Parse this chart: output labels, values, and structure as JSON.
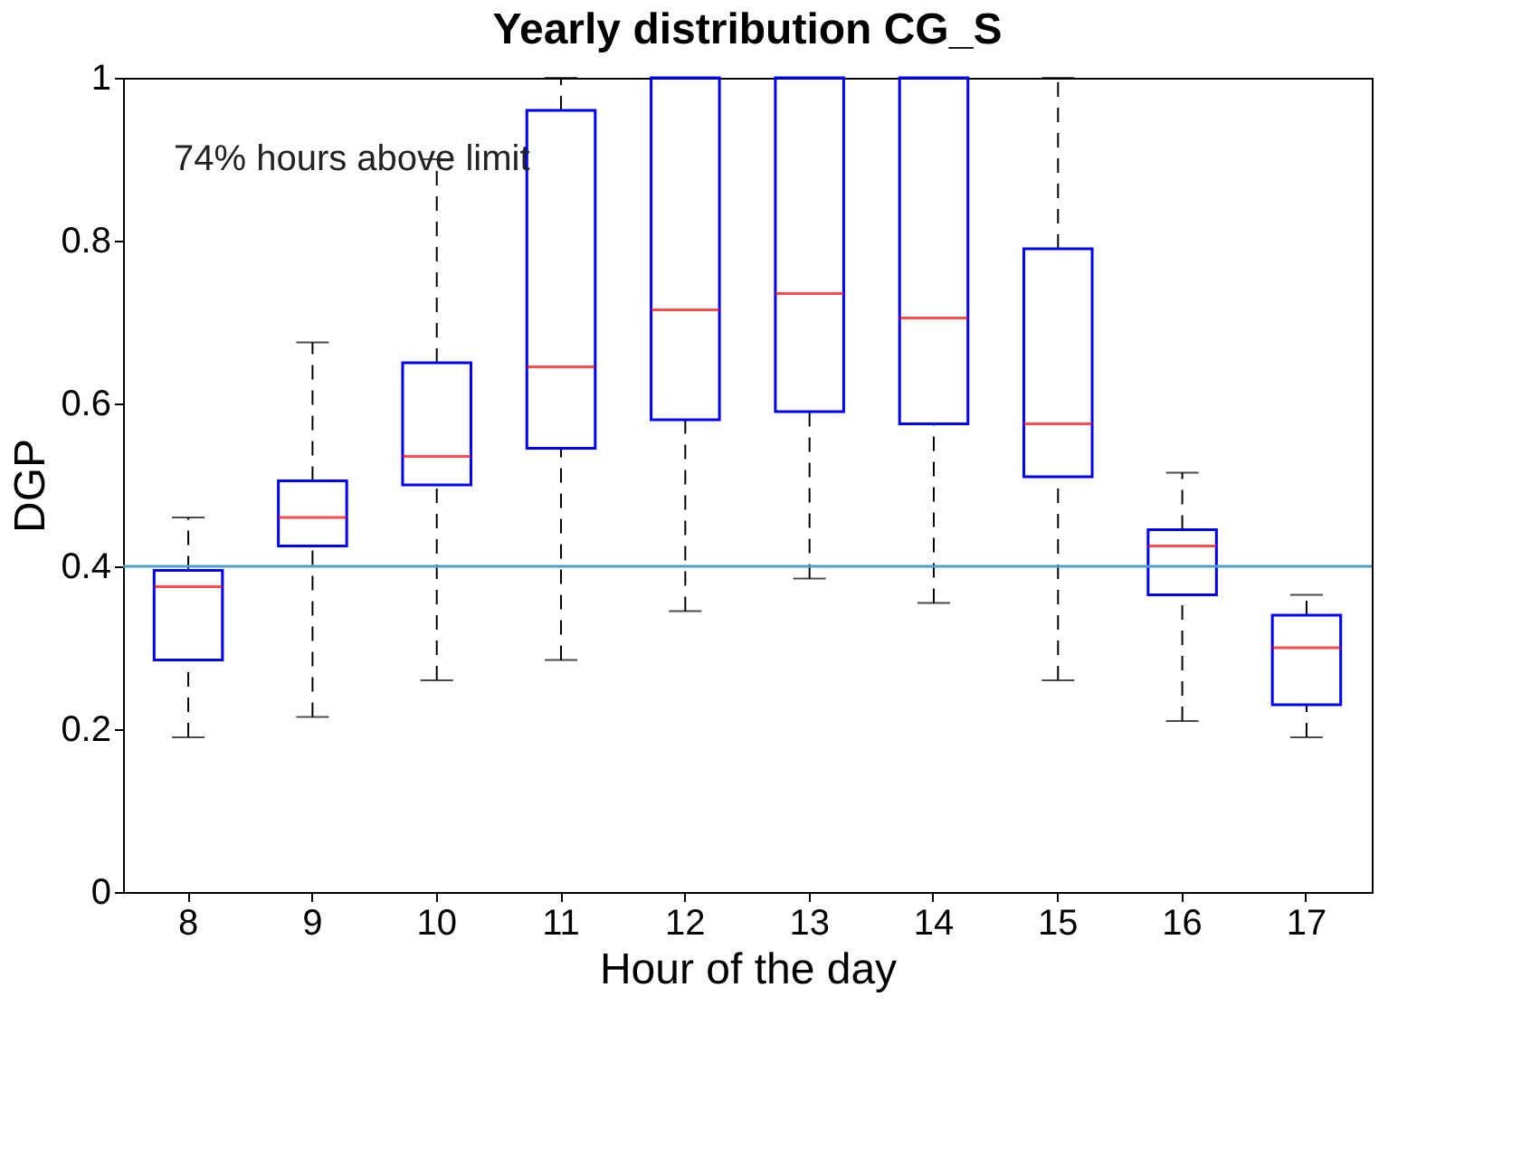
{
  "chart_data": {
    "type": "box",
    "title": "Yearly distribution CG_S",
    "xlabel": "Hour of the day",
    "ylabel": "DGP",
    "categories": [
      "8",
      "9",
      "10",
      "11",
      "12",
      "13",
      "14",
      "15",
      "16",
      "17"
    ],
    "series": [
      {
        "boxes": [
          {
            "low": 0.19,
            "q1": 0.285,
            "median": 0.375,
            "q3": 0.395,
            "high": 0.46
          },
          {
            "low": 0.215,
            "q1": 0.425,
            "median": 0.46,
            "q3": 0.505,
            "high": 0.675
          },
          {
            "low": 0.26,
            "q1": 0.5,
            "median": 0.535,
            "q3": 0.65,
            "high": 0.9
          },
          {
            "low": 0.285,
            "q1": 0.545,
            "median": 0.645,
            "q3": 0.96,
            "high": 1.0
          },
          {
            "low": 0.345,
            "q1": 0.58,
            "median": 0.715,
            "q3": 1.0,
            "high": 1.0
          },
          {
            "low": 0.385,
            "q1": 0.59,
            "median": 0.735,
            "q3": 1.0,
            "high": 1.0
          },
          {
            "low": 0.355,
            "q1": 0.575,
            "median": 0.705,
            "q3": 1.0,
            "high": 1.0
          },
          {
            "low": 0.26,
            "q1": 0.51,
            "median": 0.575,
            "q3": 0.79,
            "high": 1.0
          },
          {
            "low": 0.21,
            "q1": 0.365,
            "median": 0.425,
            "q3": 0.445,
            "high": 0.515
          },
          {
            "low": 0.19,
            "q1": 0.23,
            "median": 0.3,
            "q3": 0.34,
            "high": 0.365
          }
        ]
      }
    ],
    "ylim": [
      0,
      1
    ],
    "yticks": [
      0,
      0.2,
      0.4,
      0.6,
      0.8,
      1
    ],
    "ref_lines": [
      {
        "axis": "y",
        "value": 0.4,
        "color": "#4aa0c8"
      }
    ],
    "annotations": [
      "74% hours above limit"
    ],
    "grid": false
  }
}
